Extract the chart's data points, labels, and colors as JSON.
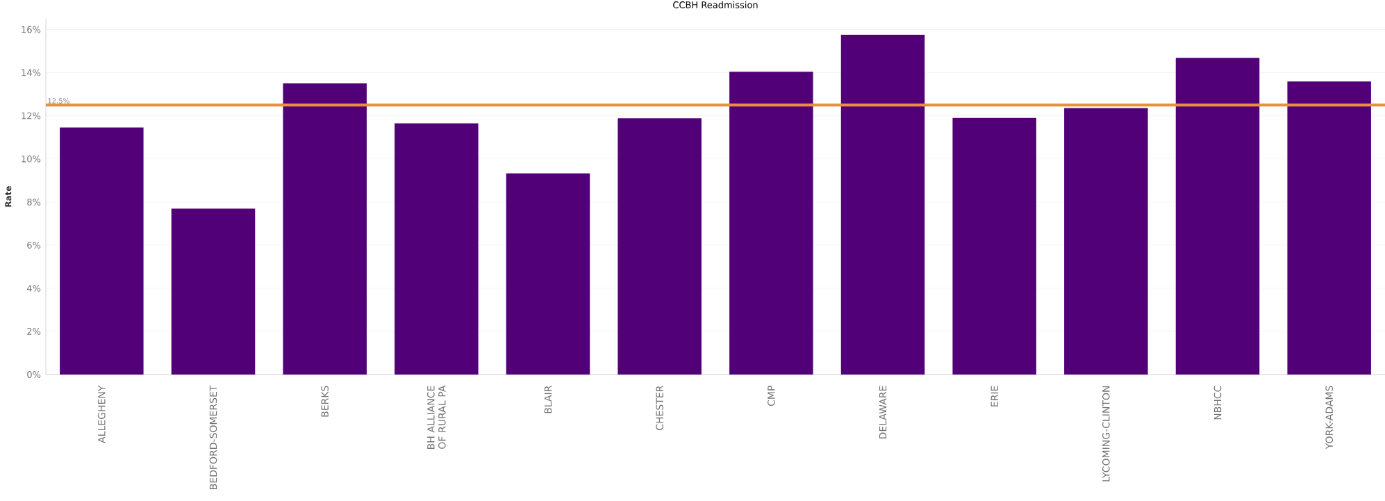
{
  "chart_data": {
    "type": "bar",
    "title": "CCBH Readmission",
    "ylabel": "Rate",
    "categories": [
      "ALLEGHENY",
      "BEDFORD-SOMERSET",
      "BERKS",
      "BH ALLIANCE OF RURAL PA",
      "BLAIR",
      "CHESTER",
      "CMP",
      "DELAWARE",
      "ERIE",
      "LYCOMING-CLINTON",
      "NBHCC",
      "YORK-ADAMS"
    ],
    "values": [
      11.46,
      7.69,
      13.5,
      11.65,
      9.33,
      11.88,
      14.04,
      15.76,
      11.9,
      12.36,
      14.69,
      13.59
    ],
    "color": "#520077",
    "ylim": [
      0,
      16.5
    ],
    "yticks": [
      {
        "value": 0,
        "label": "0%"
      },
      {
        "value": 2,
        "label": "2%"
      },
      {
        "value": 4,
        "label": "4%"
      },
      {
        "value": 6,
        "label": "6%"
      },
      {
        "value": 8,
        "label": "8%"
      },
      {
        "value": 10,
        "label": "10%"
      },
      {
        "value": 12,
        "label": "12%"
      },
      {
        "value": 14,
        "label": "14%"
      },
      {
        "value": 16,
        "label": "16%"
      }
    ],
    "grid": "y",
    "ref_lines": [
      {
        "axis": "y",
        "value": 12.5,
        "label": "12.5%",
        "color": "#e8913a"
      }
    ]
  }
}
